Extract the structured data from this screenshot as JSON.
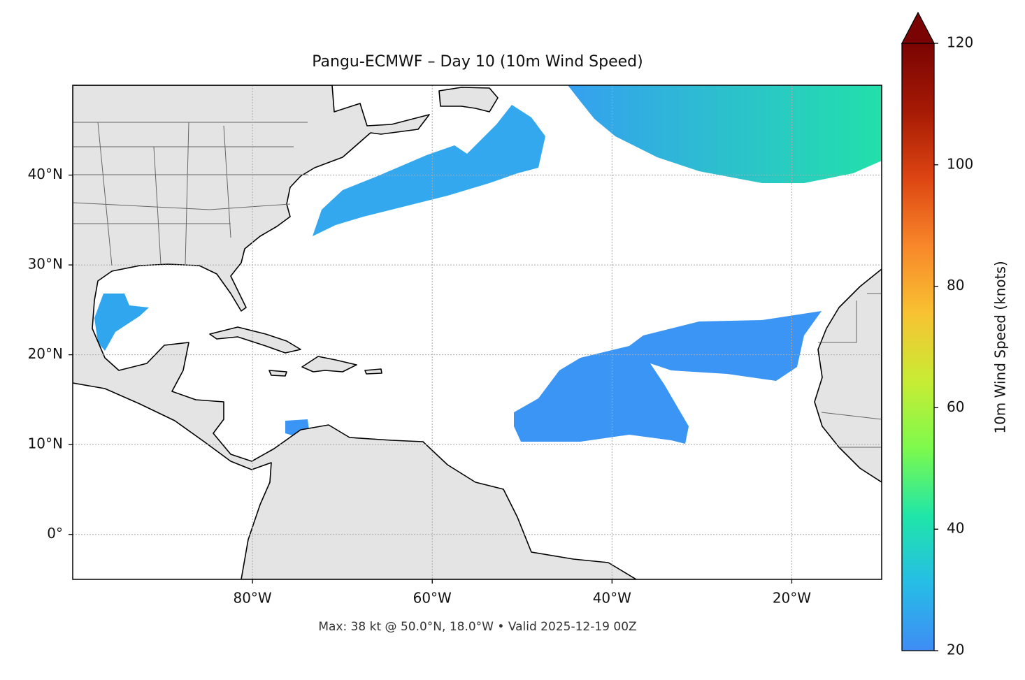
{
  "chart_data": {
    "type": "map",
    "title": "Pangu-ECMWF – Day 10 (10m Wind Speed)",
    "footnote": "Max: 38 kt @ 50.0°N, 18.0°W • Valid 2025-12-19 00Z",
    "xlim": [
      -100,
      -10
    ],
    "ylim": [
      -5,
      50
    ],
    "xticks": [
      {
        "value": -80,
        "label": "80°W"
      },
      {
        "value": -60,
        "label": "60°W"
      },
      {
        "value": -40,
        "label": "40°W"
      },
      {
        "value": -20,
        "label": "20°W"
      }
    ],
    "yticks": [
      {
        "value": 0,
        "label": "0°"
      },
      {
        "value": 10,
        "label": "10°N"
      },
      {
        "value": 20,
        "label": "20°N"
      },
      {
        "value": 30,
        "label": "30°N"
      },
      {
        "value": 40,
        "label": "40°N"
      }
    ],
    "grid": true,
    "colorbar": {
      "label": "10m Wind Speed (knots)",
      "lim": [
        20,
        120
      ],
      "ticks": [
        20,
        40,
        60,
        80,
        100,
        120
      ],
      "colors": [
        "#3f8cf5",
        "#26bde6",
        "#1fe6a8",
        "#7dfa4c",
        "#c8ec34",
        "#f8c232",
        "#f8872a",
        "#dd4512",
        "#a51a04",
        "#7a0403"
      ]
    }
  }
}
